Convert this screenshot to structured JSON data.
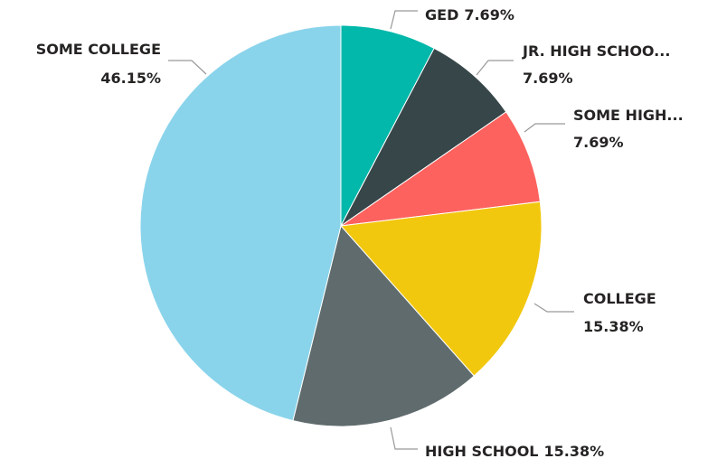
{
  "chart_data": {
    "type": "pie",
    "categories": [
      "GED",
      "JR. HIGH SCHOO...",
      "SOME HIGH...",
      "COLLEGE",
      "HIGH SCHOOL",
      "SOME COLLEGE"
    ],
    "values": [
      7.69,
      7.69,
      7.69,
      15.38,
      15.38,
      46.15
    ],
    "value_labels": [
      "7.69%",
      "7.69%",
      "7.69%",
      "15.38%",
      "15.38%",
      "46.15%"
    ],
    "colors": [
      "#01B8AA",
      "#374649",
      "#FD625E",
      "#F2C80F",
      "#5F6B6D",
      "#8AD4EB"
    ]
  }
}
